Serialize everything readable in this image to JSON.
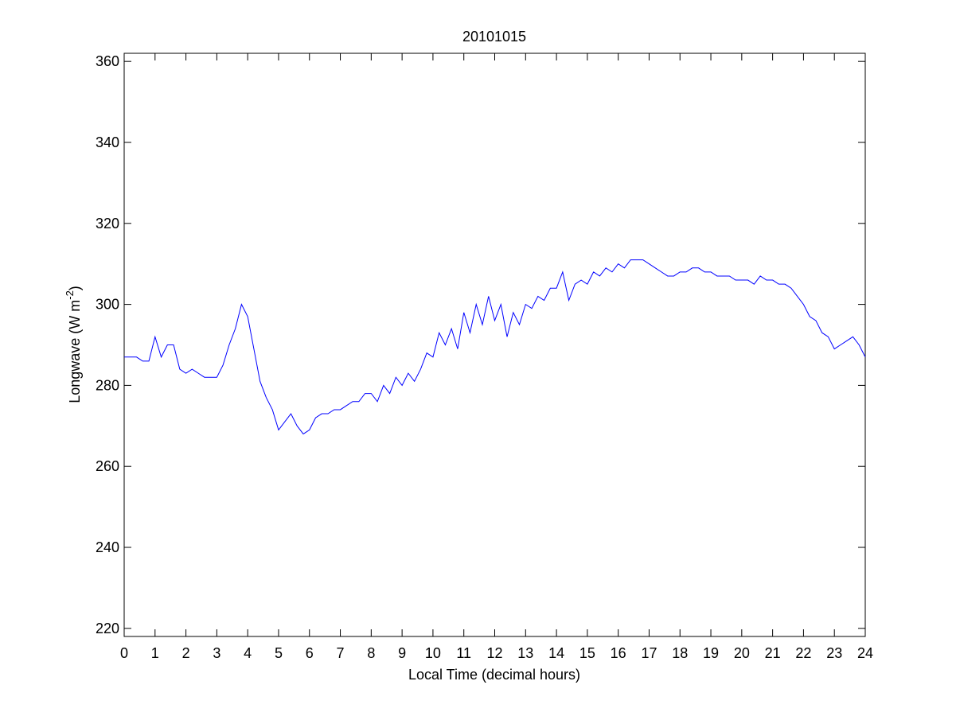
{
  "chart_data": {
    "type": "line",
    "title": "20101015",
    "xlabel": "Local Time (decimal hours)",
    "ylabel": "Longwave (W m",
    "ylabel_sup": "-2",
    "ylabel_end": ")",
    "x": [
      0,
      0.2,
      0.4,
      0.6,
      0.8,
      1,
      1.2,
      1.4,
      1.6,
      1.8,
      2,
      2.2,
      2.4,
      2.6,
      2.8,
      3,
      3.2,
      3.4,
      3.6,
      3.8,
      4,
      4.2,
      4.4,
      4.6,
      4.8,
      5,
      5.2,
      5.4,
      5.6,
      5.8,
      6,
      6.2,
      6.4,
      6.6,
      6.8,
      7,
      7.2,
      7.4,
      7.6,
      7.8,
      8,
      8.2,
      8.4,
      8.6,
      8.8,
      9,
      9.2,
      9.4,
      9.6,
      9.8,
      10,
      10.2,
      10.4,
      10.6,
      10.8,
      11,
      11.2,
      11.4,
      11.6,
      11.8,
      12,
      12.2,
      12.4,
      12.6,
      12.8,
      13,
      13.2,
      13.4,
      13.6,
      13.8,
      14,
      14.2,
      14.4,
      14.6,
      14.8,
      15,
      15.2,
      15.4,
      15.6,
      15.8,
      16,
      16.2,
      16.4,
      16.6,
      16.8,
      17,
      17.2,
      17.4,
      17.6,
      17.8,
      18,
      18.2,
      18.4,
      18.6,
      18.8,
      19,
      19.2,
      19.4,
      19.6,
      19.8,
      20,
      20.2,
      20.4,
      20.6,
      20.8,
      21,
      21.2,
      21.4,
      21.6,
      21.8,
      22,
      22.2,
      22.4,
      22.6,
      22.8,
      23,
      23.2,
      23.4,
      23.6,
      23.8,
      24
    ],
    "series": [
      {
        "name": "Longwave",
        "color": "#0000ff",
        "values": [
          287,
          287,
          287,
          286,
          286,
          292,
          287,
          290,
          290,
          284,
          283,
          284,
          283,
          282,
          282,
          282,
          285,
          290,
          294,
          300,
          297,
          289,
          281,
          277,
          274,
          269,
          271,
          273,
          270,
          268,
          269,
          272,
          273,
          273,
          274,
          274,
          275,
          276,
          276,
          278,
          278,
          276,
          280,
          278,
          282,
          280,
          283,
          281,
          284,
          288,
          287,
          293,
          290,
          294,
          289,
          298,
          293,
          300,
          295,
          302,
          296,
          300,
          292,
          298,
          295,
          300,
          299,
          302,
          301,
          304,
          304,
          308,
          301,
          305,
          306,
          305,
          308,
          307,
          309,
          308,
          310,
          309,
          311,
          311,
          311,
          310,
          309,
          308,
          307,
          307,
          308,
          308,
          309,
          309,
          308,
          308,
          307,
          307,
          307,
          306,
          306,
          306,
          305,
          307,
          306,
          306,
          305,
          305,
          304,
          302,
          300,
          297,
          296,
          293,
          292,
          289,
          290,
          291,
          292,
          290,
          287
        ]
      }
    ],
    "xlim": [
      0,
      24
    ],
    "ylim": [
      218,
      362
    ],
    "xticks": [
      0,
      1,
      2,
      3,
      4,
      5,
      6,
      7,
      8,
      9,
      10,
      11,
      12,
      13,
      14,
      15,
      16,
      17,
      18,
      19,
      20,
      21,
      22,
      23,
      24
    ],
    "yticks": [
      220,
      240,
      260,
      280,
      300,
      320,
      340,
      360
    ]
  }
}
